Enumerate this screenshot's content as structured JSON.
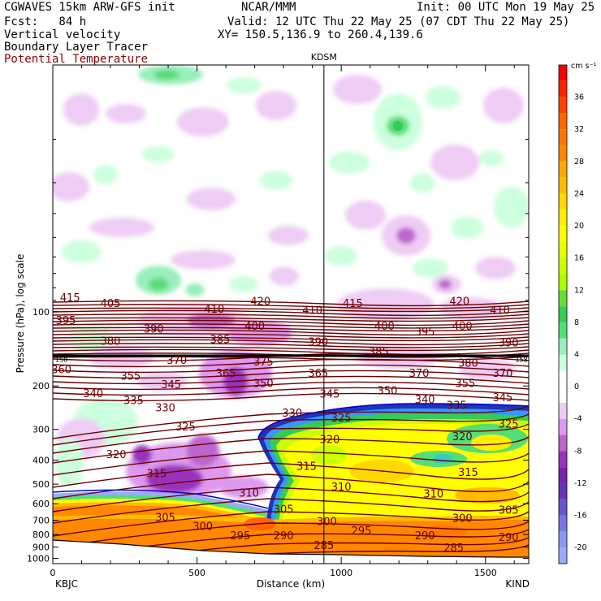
{
  "header": {
    "line1_left": "CGWAVES 15km ARW-GFS init",
    "line1_mid": "NCAR/MMM",
    "line1_right": "Init: 00 UTC Mon 19 May 25",
    "line2_left": "Fcst:   84 h",
    "line2_right": "Valid: 12 UTC Thu 22 May 25 (07 CDT Thu 22 May 25)",
    "line3_left": "Vertical velocity",
    "line3_right": "XY= 150.5,136.9 to 260.4,139.6",
    "line4_left": "Boundary Layer Tracer",
    "line5_left": "Potential Temperature"
  },
  "colors": {
    "theta": "#6b0000",
    "tracer": "#0000cc",
    "ground": "#000000"
  },
  "chart_data": {
    "type": "cross-section",
    "station_marker": "KDSM",
    "station_x_km": 940,
    "xlabel": "Distance (km)",
    "ylabel": "Pressure (hPa), log scale",
    "xlim": [
      0,
      1650
    ],
    "ylim": [
      1050,
      10
    ],
    "x_ticks": [
      0,
      500,
      1000,
      1500
    ],
    "y_ticks": [
      100,
      200,
      300,
      400,
      500,
      600,
      700,
      800,
      900,
      1000
    ],
    "left_endpoint": "KBJC",
    "right_endpoint": "KIND",
    "colorbar": {
      "unit": "cm s⁻¹",
      "labels": [
        36,
        32,
        28,
        24,
        20,
        16,
        12,
        8,
        4,
        0,
        -4,
        -8,
        -12,
        -16,
        -20
      ],
      "bins": [
        {
          "from": 38,
          "to": 40,
          "color": "#ff0000"
        },
        {
          "from": 36,
          "to": 38,
          "color": "#ff2200"
        },
        {
          "from": 34,
          "to": 36,
          "color": "#ff4400"
        },
        {
          "from": 32,
          "to": 34,
          "color": "#ff6600"
        },
        {
          "from": 30,
          "to": 32,
          "color": "#ff7700"
        },
        {
          "from": 28,
          "to": 30,
          "color": "#ff8800"
        },
        {
          "from": 26,
          "to": 28,
          "color": "#ffaa00"
        },
        {
          "from": 24,
          "to": 26,
          "color": "#ffbb00"
        },
        {
          "from": 22,
          "to": 24,
          "color": "#ffd800"
        },
        {
          "from": 20,
          "to": 22,
          "color": "#ffee00"
        },
        {
          "from": 18,
          "to": 20,
          "color": "#ffff00"
        },
        {
          "from": 16,
          "to": 18,
          "color": "#e6ff00"
        },
        {
          "from": 14,
          "to": 16,
          "color": "#ccff00"
        },
        {
          "from": 12,
          "to": 14,
          "color": "#aaff00"
        },
        {
          "from": 10,
          "to": 12,
          "color": "#66dd33"
        },
        {
          "from": 8,
          "to": 10,
          "color": "#33cc55"
        },
        {
          "from": 6,
          "to": 8,
          "color": "#55dd77"
        },
        {
          "from": 4,
          "to": 6,
          "color": "#99eebb"
        },
        {
          "from": 2,
          "to": 4,
          "color": "#ccffdd"
        },
        {
          "from": -2,
          "to": 2,
          "color": "#ffffff"
        },
        {
          "from": -4,
          "to": -2,
          "color": "#eeccf4"
        },
        {
          "from": -6,
          "to": -4,
          "color": "#dd99ee"
        },
        {
          "from": -8,
          "to": -6,
          "color": "#bb66cc"
        },
        {
          "from": -10,
          "to": -8,
          "color": "#9933bb"
        },
        {
          "from": -12,
          "to": -10,
          "color": "#7722aa"
        },
        {
          "from": -14,
          "to": -12,
          "color": "#6633bb"
        },
        {
          "from": -16,
          "to": -14,
          "color": "#6655cc"
        },
        {
          "from": -18,
          "to": -16,
          "color": "#7777dd"
        },
        {
          "from": -20,
          "to": -18,
          "color": "#8899ee"
        },
        {
          "from": -22,
          "to": -20,
          "color": "#99aaff"
        }
      ]
    },
    "theta_labels": [
      {
        "text": "415",
        "x_km": 60,
        "p": 88
      },
      {
        "text": "405",
        "x_km": 200,
        "p": 93
      },
      {
        "text": "410",
        "x_km": 560,
        "p": 98
      },
      {
        "text": "420",
        "x_km": 720,
        "p": 91
      },
      {
        "text": "410",
        "x_km": 900,
        "p": 99
      },
      {
        "text": "415",
        "x_km": 1040,
        "p": 93
      },
      {
        "text": "420",
        "x_km": 1410,
        "p": 91
      },
      {
        "text": "410",
        "x_km": 1550,
        "p": 99
      },
      {
        "text": "395",
        "x_km": 45,
        "p": 109
      },
      {
        "text": "390",
        "x_km": 350,
        "p": 118
      },
      {
        "text": "400",
        "x_km": 700,
        "p": 115
      },
      {
        "text": "400",
        "x_km": 1150,
        "p": 115
      },
      {
        "text": "395",
        "x_km": 1290,
        "p": 121
      },
      {
        "text": "400",
        "x_km": 1420,
        "p": 115
      },
      {
        "text": "380",
        "x_km": 200,
        "p": 132
      },
      {
        "text": "385",
        "x_km": 580,
        "p": 130
      },
      {
        "text": "390",
        "x_km": 920,
        "p": 133
      },
      {
        "text": "385",
        "x_km": 1130,
        "p": 146
      },
      {
        "text": "390",
        "x_km": 1580,
        "p": 134
      },
      {
        "text": "370",
        "x_km": 430,
        "p": 158
      },
      {
        "text": "375",
        "x_km": 730,
        "p": 160
      },
      {
        "text": "380",
        "x_km": 1440,
        "p": 162
      },
      {
        "text": "360",
        "x_km": 30,
        "p": 172
      },
      {
        "text": "355",
        "x_km": 270,
        "p": 183
      },
      {
        "text": "365",
        "x_km": 600,
        "p": 178
      },
      {
        "text": "365",
        "x_km": 920,
        "p": 178
      },
      {
        "text": "370",
        "x_km": 1270,
        "p": 178
      },
      {
        "text": "370",
        "x_km": 1560,
        "p": 178
      },
      {
        "text": "345",
        "x_km": 410,
        "p": 198
      },
      {
        "text": "350",
        "x_km": 730,
        "p": 196
      },
      {
        "text": "355",
        "x_km": 1430,
        "p": 196
      },
      {
        "text": "340",
        "x_km": 140,
        "p": 215
      },
      {
        "text": "345",
        "x_km": 960,
        "p": 216
      },
      {
        "text": "350",
        "x_km": 1160,
        "p": 210
      },
      {
        "text": "345",
        "x_km": 1560,
        "p": 224
      },
      {
        "text": "335",
        "x_km": 280,
        "p": 230
      },
      {
        "text": "340",
        "x_km": 1290,
        "p": 228
      },
      {
        "text": "335",
        "x_km": 1400,
        "p": 240
      },
      {
        "text": "330",
        "x_km": 390,
        "p": 246
      },
      {
        "text": "330",
        "x_km": 830,
        "p": 258
      },
      {
        "text": "325",
        "x_km": 1000,
        "p": 270
      },
      {
        "text": "325",
        "x_km": 1580,
        "p": 286
      },
      {
        "text": "325",
        "x_km": 460,
        "p": 294
      },
      {
        "text": "320",
        "x_km": 960,
        "p": 330
      },
      {
        "text": "320",
        "x_km": 1420,
        "p": 322
      },
      {
        "text": "320",
        "x_km": 220,
        "p": 380
      },
      {
        "text": "315",
        "x_km": 880,
        "p": 425
      },
      {
        "text": "315",
        "x_km": 1440,
        "p": 450
      },
      {
        "text": "315",
        "x_km": 360,
        "p": 455
      },
      {
        "text": "310",
        "x_km": 680,
        "p": 545
      },
      {
        "text": "310",
        "x_km": 1000,
        "p": 515
      },
      {
        "text": "310",
        "x_km": 1320,
        "p": 550
      },
      {
        "text": "305",
        "x_km": 800,
        "p": 635
      },
      {
        "text": "305",
        "x_km": 1580,
        "p": 640
      },
      {
        "text": "305",
        "x_km": 390,
        "p": 685
      },
      {
        "text": "300",
        "x_km": 950,
        "p": 710
      },
      {
        "text": "300",
        "x_km": 1420,
        "p": 690
      },
      {
        "text": "300",
        "x_km": 520,
        "p": 745
      },
      {
        "text": "295",
        "x_km": 1070,
        "p": 775
      },
      {
        "text": "295",
        "x_km": 650,
        "p": 810
      },
      {
        "text": "290",
        "x_km": 800,
        "p": 810
      },
      {
        "text": "290",
        "x_km": 1290,
        "p": 810
      },
      {
        "text": "290",
        "x_km": 1580,
        "p": 825
      },
      {
        "text": "285",
        "x_km": 940,
        "p": 890
      },
      {
        "text": "285",
        "x_km": 1390,
        "p": 910
      }
    ],
    "tropopause_marks": [
      {
        "text": "158",
        "x_km": 30,
        "p": 156
      },
      {
        "text": "158",
        "x_km": 1625,
        "p": 156
      }
    ]
  }
}
